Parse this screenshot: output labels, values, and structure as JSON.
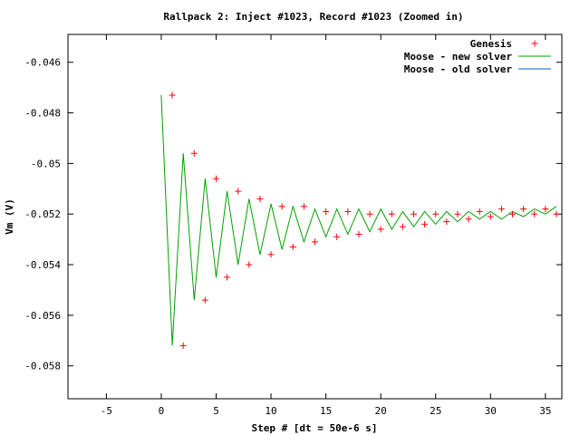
{
  "chart_data": {
    "type": "line",
    "title": "Rallpack 2: Inject #1023, Record #1023 (Zoomed in)",
    "xlabel": "Step # [dt = 50e-6 s]",
    "ylabel": "Vm (V)",
    "xlim": [
      -8.5,
      36.5
    ],
    "ylim": [
      -0.0593,
      -0.0449
    ],
    "x_ticks": [
      -5,
      0,
      5,
      10,
      15,
      20,
      25,
      30,
      35
    ],
    "y_ticks": [
      -0.058,
      -0.056,
      -0.054,
      -0.052,
      -0.05,
      -0.048,
      -0.046
    ],
    "y_tick_labels": [
      "-0.058",
      "-0.056",
      "-0.054",
      "-0.052",
      "-0.05",
      "-0.048",
      "-0.046"
    ],
    "grid": false,
    "legend_position": "top-right",
    "series": [
      {
        "name": "Genesis",
        "style": "points",
        "marker": "+",
        "color": "#ff0000",
        "x": [
          1,
          2,
          3,
          4,
          5,
          6,
          7,
          8,
          9,
          10,
          11,
          12,
          13,
          14,
          15,
          16,
          17,
          18,
          19,
          20,
          21,
          22,
          23,
          24,
          25,
          26,
          27,
          28,
          29,
          30,
          31,
          32,
          33,
          34,
          35,
          36
        ],
        "y": [
          -0.0473,
          -0.0572,
          -0.0496,
          -0.0554,
          -0.0506,
          -0.0545,
          -0.0511,
          -0.054,
          -0.0514,
          -0.0536,
          -0.0517,
          -0.0533,
          -0.0517,
          -0.0531,
          -0.0519,
          -0.0529,
          -0.0519,
          -0.0528,
          -0.052,
          -0.0526,
          -0.052,
          -0.0525,
          -0.052,
          -0.0524,
          -0.052,
          -0.0523,
          -0.052,
          -0.0522,
          -0.0519,
          -0.0521,
          -0.0518,
          -0.052,
          -0.0518,
          -0.052,
          -0.0518,
          -0.052
        ]
      },
      {
        "name": "Moose - new solver",
        "style": "line",
        "color": "#00a000",
        "x": [
          0,
          1,
          2,
          3,
          4,
          5,
          6,
          7,
          8,
          9,
          10,
          11,
          12,
          13,
          14,
          15,
          16,
          17,
          18,
          19,
          20,
          21,
          22,
          23,
          24,
          25,
          26,
          27,
          28,
          29,
          30,
          31,
          32,
          33,
          34,
          35,
          36
        ],
        "y": [
          -0.0473,
          -0.0572,
          -0.0496,
          -0.0554,
          -0.0506,
          -0.0545,
          -0.0511,
          -0.054,
          -0.0514,
          -0.0536,
          -0.0516,
          -0.0534,
          -0.0517,
          -0.0531,
          -0.0518,
          -0.0529,
          -0.0518,
          -0.0528,
          -0.0518,
          -0.0527,
          -0.0518,
          -0.0526,
          -0.0519,
          -0.0525,
          -0.0519,
          -0.0524,
          -0.0519,
          -0.0523,
          -0.0519,
          -0.0522,
          -0.0519,
          -0.0522,
          -0.0519,
          -0.0521,
          -0.0518,
          -0.052,
          -0.0517
        ]
      },
      {
        "name": "Moose - old solver",
        "style": "line",
        "color": "#0060c0",
        "x": [],
        "y": []
      }
    ]
  }
}
